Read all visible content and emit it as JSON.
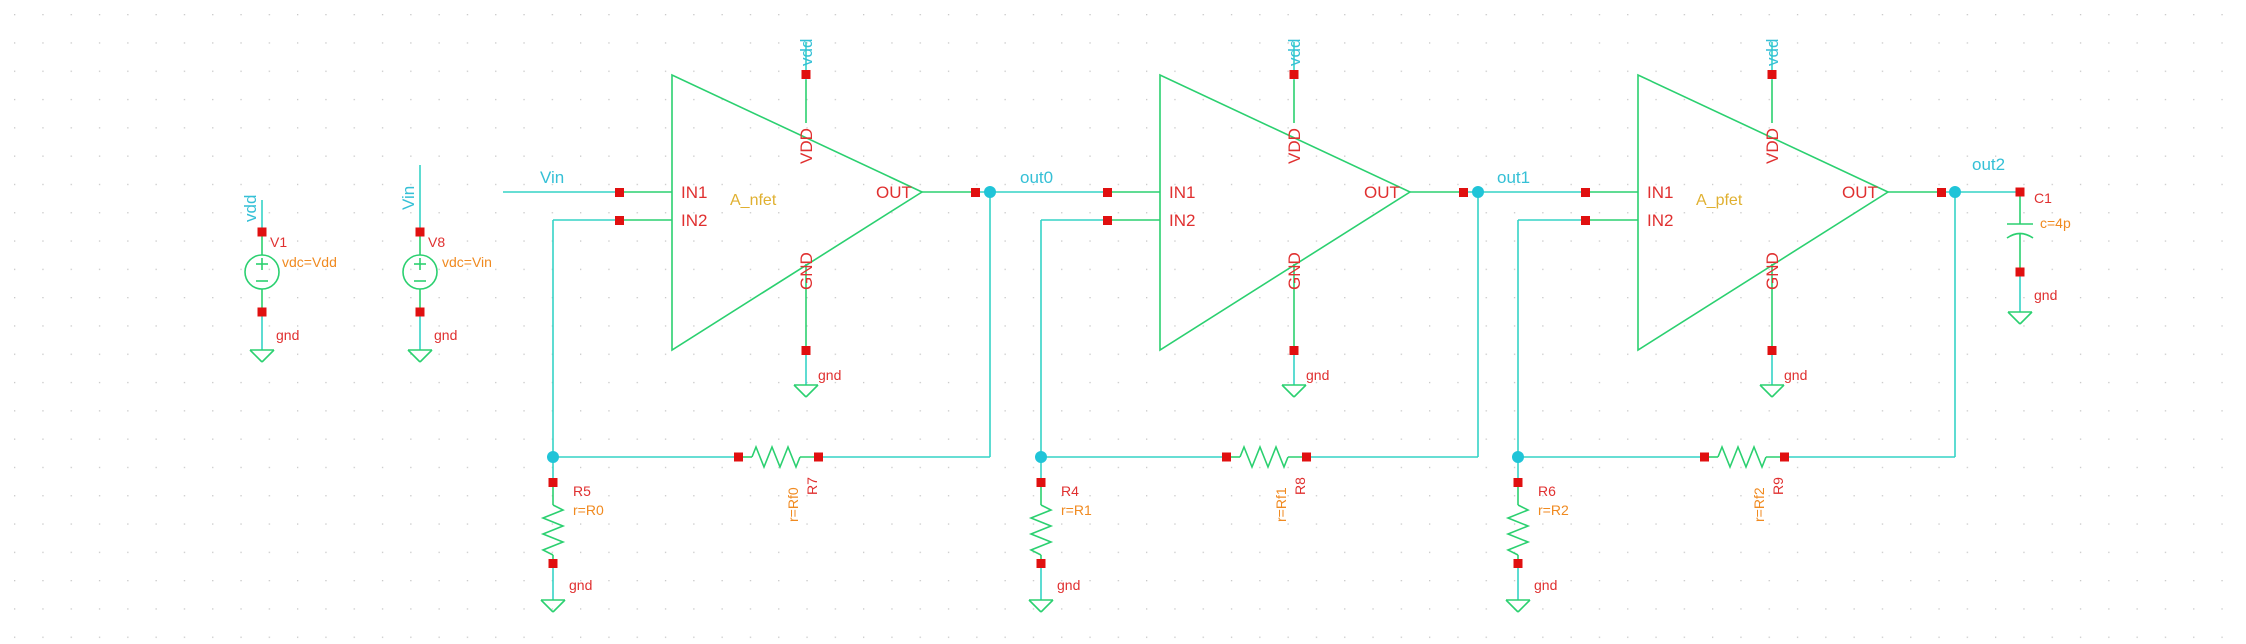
{
  "sources": [
    {
      "net": "vdd",
      "instance": "V1",
      "param": "vdc=Vdd",
      "ground": "gnd"
    },
    {
      "net": "Vin",
      "instance": "V8",
      "param": "vdc=Vin",
      "ground": "gnd"
    }
  ],
  "input_net": "Vin",
  "stages": [
    {
      "cell": "A_nfet",
      "supply": "vdd",
      "ground": "gnd",
      "pins": {
        "in1": "IN1",
        "in2": "IN2",
        "vdd": "VDD",
        "gnd": "GND",
        "out": "OUT"
      },
      "out_net": "out0",
      "rg": {
        "instance": "R5",
        "param": "r=R0",
        "ground": "gnd"
      },
      "rf": {
        "instance": "R7",
        "param": "r=Rf0"
      }
    },
    {
      "cell": "",
      "supply": "vdd",
      "ground": "gnd",
      "pins": {
        "in1": "IN1",
        "in2": "IN2",
        "vdd": "VDD",
        "gnd": "GND",
        "out": "OUT"
      },
      "out_net": "out1",
      "rg": {
        "instance": "R4",
        "param": "r=R1",
        "ground": "gnd"
      },
      "rf": {
        "instance": "R8",
        "param": "r=Rf1"
      }
    },
    {
      "cell": "A_pfet",
      "supply": "vdd",
      "ground": "gnd",
      "pins": {
        "in1": "IN1",
        "in2": "IN2",
        "vdd": "VDD",
        "gnd": "GND",
        "out": "OUT"
      },
      "out_net": "out2",
      "rg": {
        "instance": "R6",
        "param": "r=R2",
        "ground": "gnd"
      },
      "rf": {
        "instance": "R9",
        "param": "r=Rf2"
      }
    }
  ],
  "load_cap": {
    "instance": "C1",
    "param": "c=4p",
    "ground": "gnd"
  },
  "colors": {
    "wire": "#35d3c6",
    "symbol": "#2bd070",
    "pin": "#e01010",
    "net_label": "#35c0d6",
    "instance": "#e03030",
    "cell": "#e0b030",
    "param": "#f08a20",
    "grid_dot": "#c8c8c8"
  }
}
